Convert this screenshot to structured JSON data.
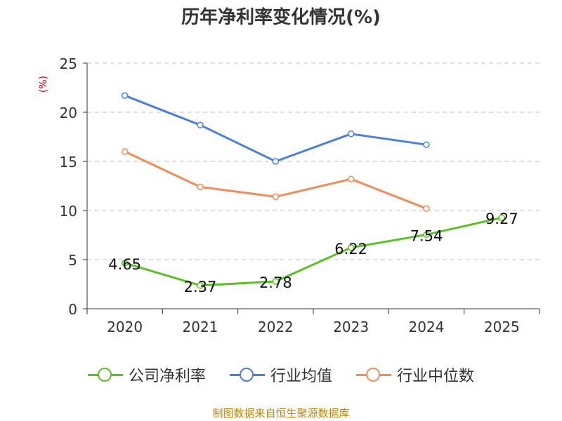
{
  "chart_data": {
    "type": "line",
    "title": "历年净利率变化情况(%)",
    "ylabel": "(%)",
    "xlabel": "",
    "categories": [
      "2020",
      "2021",
      "2022",
      "2023",
      "2024",
      "2025"
    ],
    "ylim": [
      0,
      25
    ],
    "yticks": [
      0,
      5,
      10,
      15,
      20,
      25
    ],
    "grid": true,
    "legend_position": "bottom",
    "series": [
      {
        "name": "公司净利率",
        "color": "#5bc022",
        "values": [
          4.65,
          2.37,
          2.78,
          6.22,
          7.54,
          9.27
        ],
        "labels": [
          "4.65",
          "2.37",
          "2.78",
          "6.22",
          "7.54",
          "9.27"
        ]
      },
      {
        "name": "行业均值",
        "color": "#4a7fdc",
        "values": [
          21.7,
          18.7,
          15.0,
          17.8,
          16.7,
          null
        ]
      },
      {
        "name": "行业中位数",
        "color": "#f28c5a",
        "values": [
          16.0,
          12.4,
          11.4,
          13.2,
          10.2,
          null
        ]
      }
    ]
  },
  "source": "制图数据来自恒生聚源数据库"
}
